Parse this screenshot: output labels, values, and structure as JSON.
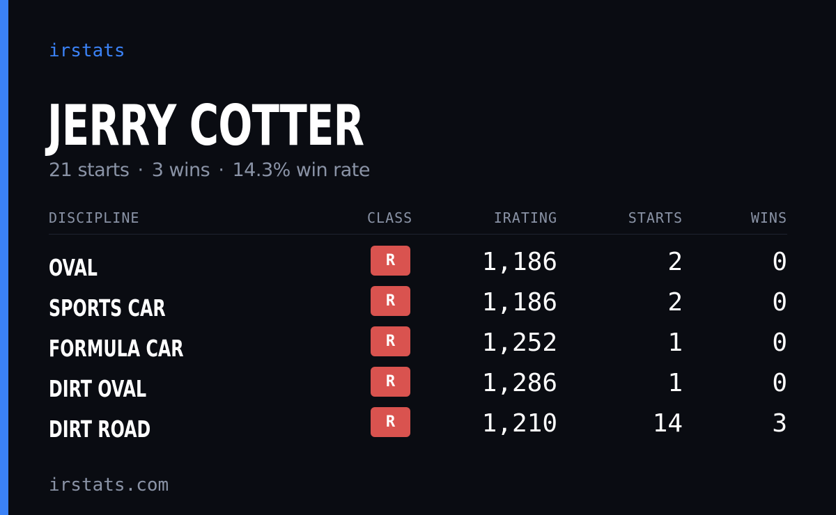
{
  "brand": "irstats",
  "driver": {
    "name": "JERRY COTTER",
    "starts_summary": "21 starts",
    "wins_summary": "3 wins",
    "win_rate_summary": "14.3% win rate",
    "separator": "·"
  },
  "table": {
    "headers": {
      "discipline": "DISCIPLINE",
      "class": "CLASS",
      "irating": "IRATING",
      "starts": "STARTS",
      "wins": "WINS"
    },
    "rows": [
      {
        "discipline": "OVAL",
        "class": "R",
        "irating": "1,186",
        "starts": "2",
        "wins": "0"
      },
      {
        "discipline": "SPORTS CAR",
        "class": "R",
        "irating": "1,186",
        "starts": "2",
        "wins": "0"
      },
      {
        "discipline": "FORMULA CAR",
        "class": "R",
        "irating": "1,252",
        "starts": "1",
        "wins": "0"
      },
      {
        "discipline": "DIRT OVAL",
        "class": "R",
        "irating": "1,286",
        "starts": "1",
        "wins": "0"
      },
      {
        "discipline": "DIRT ROAD",
        "class": "R",
        "irating": "1,210",
        "starts": "14",
        "wins": "3"
      }
    ]
  },
  "footer": "irstats.com",
  "colors": {
    "accent": "#3b82f6",
    "background": "#0a0c12",
    "class_r_badge": "#d9534f",
    "muted_text": "#8a93a6"
  }
}
